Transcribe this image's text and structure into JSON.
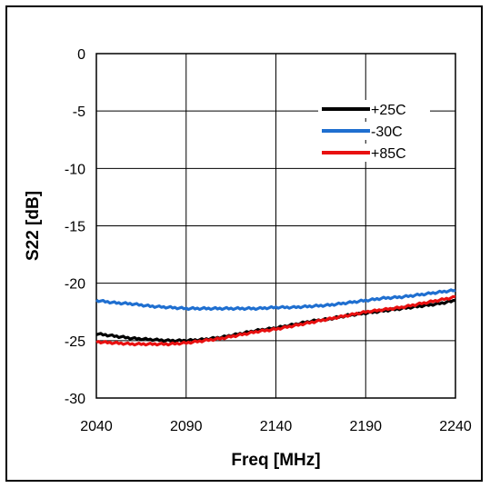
{
  "chart_data": {
    "type": "line",
    "title": "",
    "xlabel": "Freq [MHz]",
    "ylabel": "S22 [dB]",
    "xlim": [
      2040,
      2240
    ],
    "ylim": [
      -30,
      0
    ],
    "x_ticks": [
      "2040",
      "2090",
      "2140",
      "2190",
      "2240"
    ],
    "y_ticks": [
      "0",
      "-5",
      "-10",
      "-15",
      "-20",
      "-25",
      "-30"
    ],
    "grid": true,
    "legend_position": "top-right",
    "series": [
      {
        "name": "+25C",
        "color": "#000000",
        "x": [
          2040,
          2050,
          2060,
          2070,
          2080,
          2090,
          2100,
          2110,
          2120,
          2130,
          2140,
          2150,
          2160,
          2170,
          2180,
          2190,
          2200,
          2210,
          2220,
          2230,
          2240
        ],
        "y": [
          -24.4,
          -24.6,
          -24.8,
          -24.9,
          -25.0,
          -25.0,
          -24.9,
          -24.7,
          -24.4,
          -24.1,
          -23.9,
          -23.6,
          -23.3,
          -23.1,
          -22.8,
          -22.6,
          -22.4,
          -22.2,
          -22.0,
          -21.8,
          -21.5
        ]
      },
      {
        "name": "-30C",
        "color": "#1f6fd0",
        "x": [
          2040,
          2050,
          2060,
          2070,
          2080,
          2090,
          2100,
          2110,
          2120,
          2130,
          2140,
          2150,
          2160,
          2170,
          2180,
          2190,
          2200,
          2210,
          2220,
          2230,
          2240
        ],
        "y": [
          -21.5,
          -21.7,
          -21.8,
          -22.0,
          -22.1,
          -22.2,
          -22.2,
          -22.2,
          -22.2,
          -22.2,
          -22.1,
          -22.1,
          -22.0,
          -21.9,
          -21.7,
          -21.5,
          -21.3,
          -21.2,
          -21.0,
          -20.8,
          -20.6
        ]
      },
      {
        "name": "+85C",
        "color": "#e81010",
        "x": [
          2040,
          2050,
          2060,
          2070,
          2080,
          2090,
          2100,
          2110,
          2120,
          2130,
          2140,
          2150,
          2160,
          2170,
          2180,
          2190,
          2200,
          2210,
          2220,
          2230,
          2240
        ],
        "y": [
          -25.1,
          -25.2,
          -25.3,
          -25.3,
          -25.3,
          -25.2,
          -25.0,
          -24.8,
          -24.5,
          -24.2,
          -24.0,
          -23.7,
          -23.4,
          -23.1,
          -22.8,
          -22.5,
          -22.3,
          -22.1,
          -21.8,
          -21.5,
          -21.2
        ]
      }
    ]
  }
}
